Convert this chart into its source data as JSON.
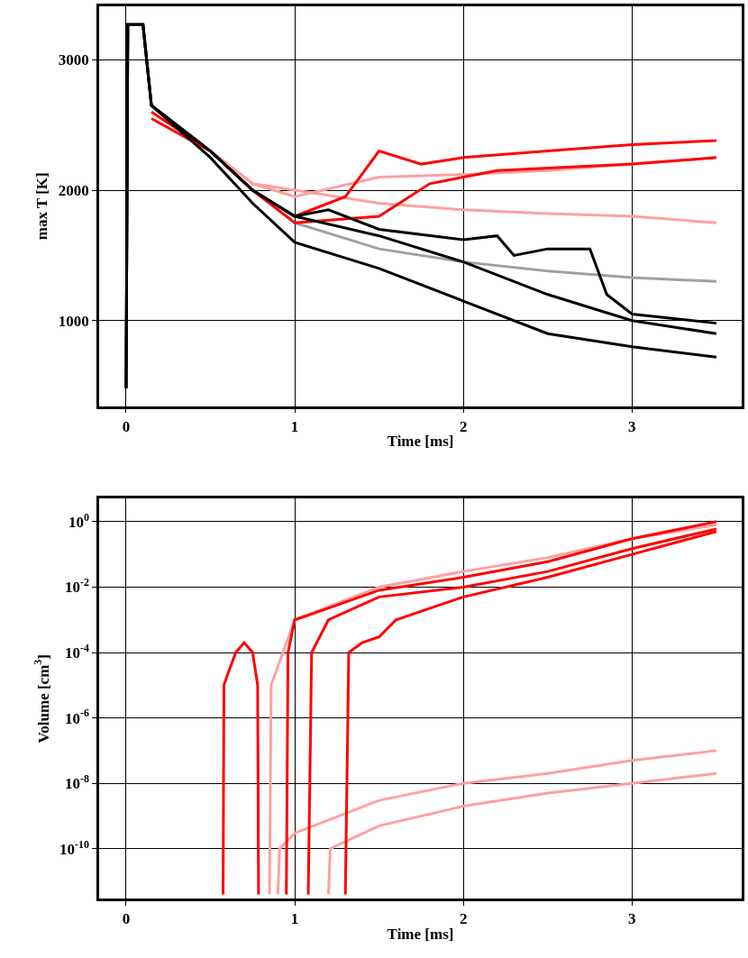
{
  "chart_data": [
    {
      "type": "line",
      "xlabel": "Time [ms]",
      "ylabel": "max T [K]",
      "xlim": [
        -0.16,
        3.65
      ],
      "ylim": [
        345,
        3410
      ],
      "xticks": [
        0,
        1,
        2,
        3
      ],
      "yticks": [
        1000,
        2000,
        3000
      ],
      "grid": true,
      "series": [
        {
          "color": "#ffa0a0",
          "x": [
            0.5,
            0.75,
            1.0,
            1.5,
            2.0,
            2.5,
            3.0,
            3.5
          ],
          "values": [
            2300,
            2050,
            2000,
            1900,
            1850,
            1820,
            1800,
            1750
          ]
        },
        {
          "color": "#ffa0a0",
          "x": [
            0.5,
            0.75,
            1.0,
            1.5,
            2.0,
            2.5,
            3.0,
            3.5
          ],
          "values": [
            2300,
            2050,
            1950,
            2100,
            2120,
            2150,
            2200,
            2250
          ]
        },
        {
          "color": "#a0a0a0",
          "x": [
            1.0,
            1.5,
            2.0,
            2.5,
            3.0,
            3.5
          ],
          "values": [
            1750,
            1550,
            1450,
            1380,
            1330,
            1300
          ]
        },
        {
          "color": "#ff0000",
          "x": [
            0.15,
            0.5,
            0.75,
            1.0,
            1.3,
            1.5,
            1.75,
            2.0,
            2.5,
            3.0,
            3.5
          ],
          "values": [
            2600,
            2300,
            2000,
            1800,
            1950,
            2300,
            2200,
            2250,
            2300,
            2350,
            2380
          ]
        },
        {
          "color": "#ff0000",
          "x": [
            0.15,
            0.5,
            0.75,
            1.0,
            1.5,
            1.8,
            2.2,
            3.0,
            3.5
          ],
          "values": [
            2550,
            2300,
            2000,
            1750,
            1800,
            2050,
            2150,
            2200,
            2250
          ]
        },
        {
          "color": "#000000",
          "x": [
            0,
            0.01,
            0.1,
            0.15,
            0.5,
            0.75,
            1.0,
            1.5,
            2.0,
            2.5,
            3.0,
            3.5
          ],
          "values": [
            480,
            3270,
            3270,
            2650,
            2300,
            2000,
            1800,
            1650,
            1450,
            1200,
            1000,
            900
          ]
        },
        {
          "color": "#000000",
          "x": [
            0,
            0.01,
            0.1,
            0.15,
            0.5,
            0.75,
            1.0,
            1.5,
            2.0,
            2.5,
            3.0,
            3.5
          ],
          "values": [
            480,
            3270,
            3270,
            2650,
            2250,
            1900,
            1600,
            1400,
            1150,
            900,
            800,
            720
          ]
        },
        {
          "color": "#000000",
          "x": [
            0,
            0.01,
            0.1,
            0.15,
            0.5,
            0.75,
            1.0,
            1.2,
            1.5,
            2.0,
            2.2,
            2.3,
            2.5,
            2.75,
            2.85,
            3.0,
            3.5
          ],
          "values": [
            480,
            3270,
            3270,
            2650,
            2300,
            2000,
            1800,
            1850,
            1700,
            1620,
            1650,
            1500,
            1550,
            1550,
            1200,
            1050,
            980
          ]
        }
      ]
    },
    {
      "type": "line",
      "xlabel": "Time [ms]",
      "ylabel": "Volume [cm$^{3}$]",
      "log": "y",
      "xlim": [
        -0.16,
        3.65
      ],
      "ylim": [
        3e-12,
        5
      ],
      "xticks": [
        0,
        1,
        2,
        3
      ],
      "yticks": [
        {
          "value": 1,
          "label": "10$^{0}$"
        },
        {
          "value": 0.01,
          "label": "10$^{-2}$"
        },
        {
          "value": 0.0001,
          "label": "10$^{-4}$"
        },
        {
          "value": 1e-06,
          "label": "10$^{-6}$"
        },
        {
          "value": 1e-08,
          "label": "10$^{-8}$"
        },
        {
          "value": 1e-10,
          "label": "10$^{-10}$"
        }
      ],
      "grid": true,
      "series": [
        {
          "color": "#ffa0a0",
          "x": [
            0.9,
            0.91,
            1.0,
            1.5,
            2.0,
            2.5,
            3.0,
            3.5
          ],
          "values": [
            4e-12,
            1e-10,
            3e-10,
            3e-09,
            1e-08,
            2e-08,
            5e-08,
            1e-07
          ]
        },
        {
          "color": "#ffa0a0",
          "x": [
            1.2,
            1.21,
            1.5,
            2.0,
            2.5,
            3.0,
            3.5
          ],
          "values": [
            4e-12,
            1e-10,
            5e-10,
            2e-09,
            5e-09,
            1e-08,
            2e-08
          ]
        },
        {
          "color": "#ffa0a0",
          "x": [
            0.85,
            0.86,
            1.0,
            1.5,
            2.0,
            2.5,
            3.0,
            3.5
          ],
          "values": [
            4e-12,
            1e-05,
            0.001,
            0.01,
            0.03,
            0.08,
            0.3,
            0.8
          ]
        },
        {
          "color": "#ff0000",
          "x": [
            0.575,
            0.58,
            0.6,
            0.65,
            0.7,
            0.75,
            0.78,
            0.785
          ],
          "values": [
            4e-12,
            1e-05,
            2e-05,
            0.0001,
            0.0002,
            0.0001,
            1e-05,
            4e-12
          ]
        },
        {
          "color": "#ff0000",
          "x": [
            0.95,
            0.96,
            1.0,
            1.1,
            1.5,
            2.0,
            2.5,
            3.0,
            3.5
          ],
          "values": [
            4e-12,
            0.0001,
            0.001,
            0.0015,
            0.008,
            0.02,
            0.06,
            0.3,
            1.0
          ]
        },
        {
          "color": "#ff0000",
          "x": [
            1.08,
            1.1,
            1.2,
            1.5,
            2.0,
            2.5,
            3.0,
            3.5
          ],
          "values": [
            4e-12,
            0.0001,
            0.001,
            0.005,
            0.01,
            0.03,
            0.15,
            0.6
          ]
        },
        {
          "color": "#ff0000",
          "x": [
            1.3,
            1.32,
            1.4,
            1.5,
            1.6,
            2.0,
            2.5,
            3.0,
            3.5
          ],
          "values": [
            4e-12,
            0.0001,
            0.0002,
            0.0003,
            0.001,
            0.005,
            0.02,
            0.1,
            0.5
          ]
        }
      ]
    }
  ]
}
